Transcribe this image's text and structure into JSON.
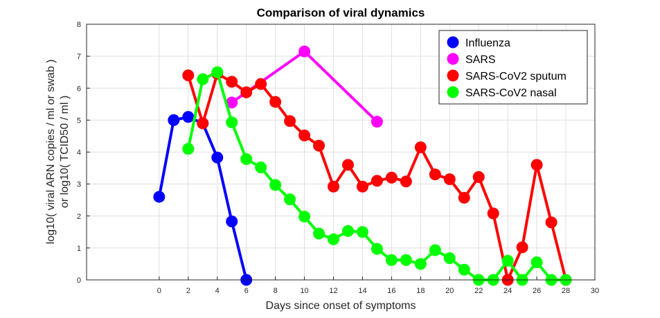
{
  "chart_data": {
    "type": "line",
    "title": "Comparison of viral dynamics",
    "xlabel": "Days since onset of symptoms",
    "ylabel_lines": [
      "log10( viral ARN copies / ml or swab )",
      "or log10( TCID50 / ml )"
    ],
    "xlim": [
      -5,
      30
    ],
    "ylim": [
      0,
      8
    ],
    "xticks": [
      0,
      2,
      4,
      6,
      8,
      10,
      12,
      14,
      16,
      18,
      20,
      22,
      24,
      26,
      28,
      30
    ],
    "yticks": [
      0,
      1,
      2,
      3,
      4,
      5,
      6,
      7,
      8
    ],
    "grid": true,
    "legend_position": "top-right",
    "series": [
      {
        "name": "Influenza",
        "color": "#0000ff",
        "x": [
          0,
          1,
          2,
          3,
          4,
          5,
          6
        ],
        "y": [
          2.6,
          5.0,
          5.1,
          4.9,
          3.83,
          1.83,
          0.0
        ]
      },
      {
        "name": "SARS",
        "color": "#ff00ff",
        "x": [
          5,
          10,
          15
        ],
        "y": [
          5.55,
          7.15,
          4.95
        ]
      },
      {
        "name": "SARS-CoV2 sputum",
        "color": "#ff0000",
        "x": [
          2,
          3,
          4,
          5,
          6,
          7,
          8,
          9,
          10,
          11,
          12,
          13,
          14,
          15,
          16,
          17,
          18,
          19,
          20,
          21,
          22,
          23,
          24,
          25,
          26,
          27,
          28
        ],
        "y": [
          6.4,
          4.9,
          6.45,
          6.2,
          5.87,
          6.13,
          5.57,
          4.97,
          4.52,
          4.2,
          2.92,
          3.6,
          2.92,
          3.1,
          3.2,
          3.08,
          4.15,
          3.3,
          3.15,
          2.57,
          3.22,
          2.08,
          0.0,
          1.02,
          3.6,
          1.8,
          0.0
        ]
      },
      {
        "name": "SARS-CoV2 nasal",
        "color": "#00ff00",
        "x": [
          2,
          3,
          4,
          5,
          6,
          7,
          8,
          9,
          10,
          11,
          12,
          13,
          14,
          15,
          16,
          17,
          18,
          19,
          20,
          21,
          22,
          23,
          24,
          25,
          26,
          27,
          28
        ],
        "y": [
          4.1,
          6.28,
          6.5,
          4.93,
          3.78,
          3.52,
          2.97,
          2.52,
          1.98,
          1.45,
          1.27,
          1.53,
          1.5,
          0.97,
          0.62,
          0.62,
          0.5,
          0.93,
          0.68,
          0.32,
          0.0,
          0.0,
          0.6,
          0.0,
          0.55,
          0.0,
          0.0
        ]
      }
    ]
  }
}
